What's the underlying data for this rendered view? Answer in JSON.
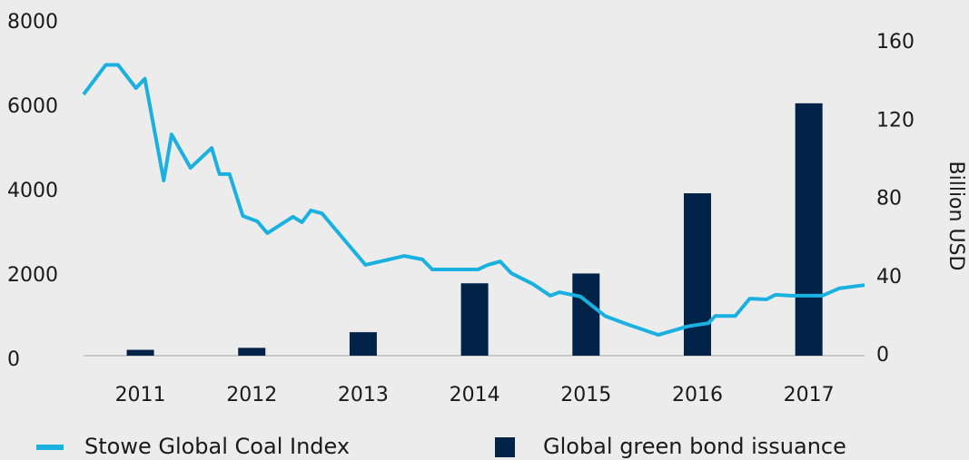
{
  "chart_data": {
    "type": "combo",
    "xlim": [
      2010.49,
      2017.5
    ],
    "xticks": [
      2011,
      2012,
      2013,
      2014,
      2015,
      2016,
      2017
    ],
    "ylim": [
      0,
      8000
    ],
    "yticks": [
      0,
      2000,
      4000,
      6000,
      8000
    ],
    "y2lim": [
      0,
      160
    ],
    "y2ticks": [
      0,
      40,
      80,
      120,
      160
    ],
    "y2label": "Billion USD",
    "legend": "bottom",
    "series": [
      {
        "name": "Stowe Global Coal Index",
        "type": "line",
        "color": "#1ab0e0",
        "axis": "y",
        "x": [
          2010.49,
          2010.69,
          2010.8,
          2010.96,
          2011.04,
          2011.21,
          2011.28,
          2011.45,
          2011.64,
          2011.71,
          2011.8,
          2011.92,
          2012.05,
          2012.14,
          2012.37,
          2012.45,
          2012.53,
          2012.63,
          2013.02,
          2013.37,
          2013.53,
          2013.62,
          2014.03,
          2014.12,
          2014.23,
          2014.33,
          2014.52,
          2014.68,
          2014.76,
          2014.95,
          2015.17,
          2015.36,
          2015.65,
          2015.91,
          2016.1,
          2016.16,
          2016.34,
          2016.47,
          2016.62,
          2016.7,
          2016.84,
          2017.12,
          2017.27,
          2017.5
        ],
        "values": [
          6300,
          7000,
          7000,
          6450,
          6670,
          4260,
          5350,
          4560,
          5030,
          4410,
          4410,
          3420,
          3290,
          3010,
          3400,
          3270,
          3550,
          3480,
          2260,
          2470,
          2390,
          2150,
          2150,
          2260,
          2340,
          2060,
          1810,
          1530,
          1610,
          1510,
          1050,
          860,
          600,
          800,
          880,
          1050,
          1050,
          1460,
          1440,
          1550,
          1530,
          1530,
          1700,
          1780
        ]
      },
      {
        "name": "Global green bond issuance",
        "type": "bar",
        "color": "#002347",
        "axis": "y2",
        "x": [
          2011,
          2012,
          2013,
          2014,
          2015,
          2016,
          2017
        ],
        "values": [
          3,
          4,
          12,
          37,
          42,
          83,
          129
        ]
      }
    ]
  }
}
